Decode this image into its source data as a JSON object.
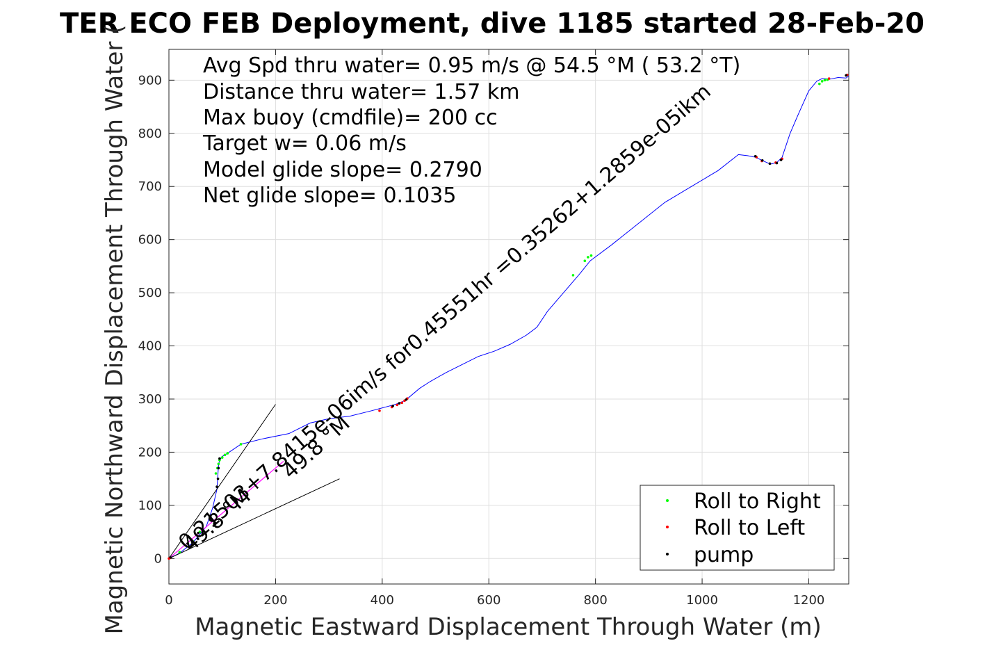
{
  "chart_data": {
    "type": "line",
    "title": "TER ECO FEB Deployment, dive 1185 started 28-Feb-20",
    "xlabel": "Magnetic Eastward Displacement Through Water (m)",
    "ylabel": "Magnetic Northward Displacement Through Water (",
    "xlim": [
      0,
      1275
    ],
    "ylim": [
      -48,
      958
    ],
    "xticks": [
      0,
      200,
      400,
      600,
      800,
      1000,
      1200
    ],
    "yticks": [
      0,
      100,
      200,
      300,
      400,
      500,
      600,
      700,
      800,
      900
    ],
    "grid": true,
    "annotations": [
      "Avg Spd thru water=  0.95 m/s @  54.5 °M ( 53.2 °T)",
      "Distance thru water=  1.57 km",
      "Max buoy (cmdfile)= 200 cc",
      "Target w= 0.06 m/s",
      "Model glide slope= 0.2790",
      "Net glide slope= 0.1035"
    ],
    "diagonal_labels": [
      "0.21503+7.8415e-06im/s for0.45551hr =0.35262+1.2859e-05ikm",
      "49.8 °M",
      "49.8 °M"
    ],
    "legend": {
      "position": "bottom-right",
      "entries": [
        "Roll to Right",
        "Roll to Left",
        "pump"
      ]
    },
    "colors": {
      "track": "#0000ff",
      "roll_right": "#00ff00",
      "roll_left": "#ff0000",
      "pump": "#000000",
      "net": "#ff00ff",
      "cone": "#000000"
    },
    "series": [
      {
        "name": "track",
        "x": [
          0,
          20,
          45,
          70,
          82,
          90,
          92,
          93,
          95,
          100,
          110,
          135,
          175,
          225,
          265,
          300,
          340,
          380,
          395,
          410,
          425,
          440,
          450,
          470,
          490,
          520,
          550,
          580,
          610,
          640,
          670,
          690,
          710,
          740,
          770,
          790,
          830,
          880,
          930,
          980,
          1030,
          1068,
          1085,
          1100,
          1115,
          1128,
          1140,
          1150,
          1165,
          1180,
          1200,
          1215,
          1225,
          1240,
          1255,
          1270,
          1275
        ],
        "y": [
          0,
          10,
          30,
          60,
          95,
          130,
          160,
          175,
          185,
          192,
          198,
          215,
          225,
          235,
          255,
          263,
          268,
          278,
          282,
          286,
          290,
          296,
          303,
          320,
          333,
          350,
          365,
          380,
          390,
          403,
          420,
          435,
          465,
          500,
          535,
          560,
          590,
          630,
          670,
          700,
          730,
          760,
          758,
          755,
          748,
          742,
          745,
          755,
          800,
          835,
          880,
          898,
          903,
          902,
          905,
          904,
          908
        ]
      },
      {
        "name": "net",
        "x": [
          0,
          215
        ],
        "y": [
          0,
          183
        ]
      },
      {
        "name": "cone-upper",
        "x": [
          0,
          200
        ],
        "y": [
          0,
          290
        ]
      },
      {
        "name": "cone-lower",
        "x": [
          0,
          320
        ],
        "y": [
          0,
          150
        ]
      },
      {
        "name": "Roll to Right",
        "x": [
          20,
          45,
          58,
          88,
          91,
          93,
          95,
          100,
          105,
          110,
          135,
          758,
          780,
          786,
          792,
          1220,
          1225,
          1230,
          1235
        ],
        "y": [
          12,
          32,
          50,
          160,
          170,
          178,
          185,
          190,
          195,
          198,
          215,
          533,
          560,
          567,
          570,
          893,
          898,
          900,
          901
        ]
      },
      {
        "name": "Roll to Left",
        "x": [
          0,
          2,
          395,
          418,
          428,
          437,
          442,
          447,
          1102,
          1112,
          1138,
          1150,
          1238,
          1272
        ],
        "y": [
          0,
          1,
          278,
          285,
          289,
          293,
          297,
          301,
          755,
          748,
          745,
          752,
          903,
          910
        ]
      },
      {
        "name": "pump",
        "x": [
          3,
          35,
          55,
          78,
          90,
          92,
          93,
          95,
          420,
          432,
          445,
          1100,
          1113,
          1127,
          1140,
          1148,
          1270
        ],
        "y": [
          2,
          28,
          48,
          80,
          135,
          150,
          170,
          188,
          287,
          292,
          299,
          757,
          749,
          743,
          744,
          750,
          909
        ]
      }
    ]
  }
}
